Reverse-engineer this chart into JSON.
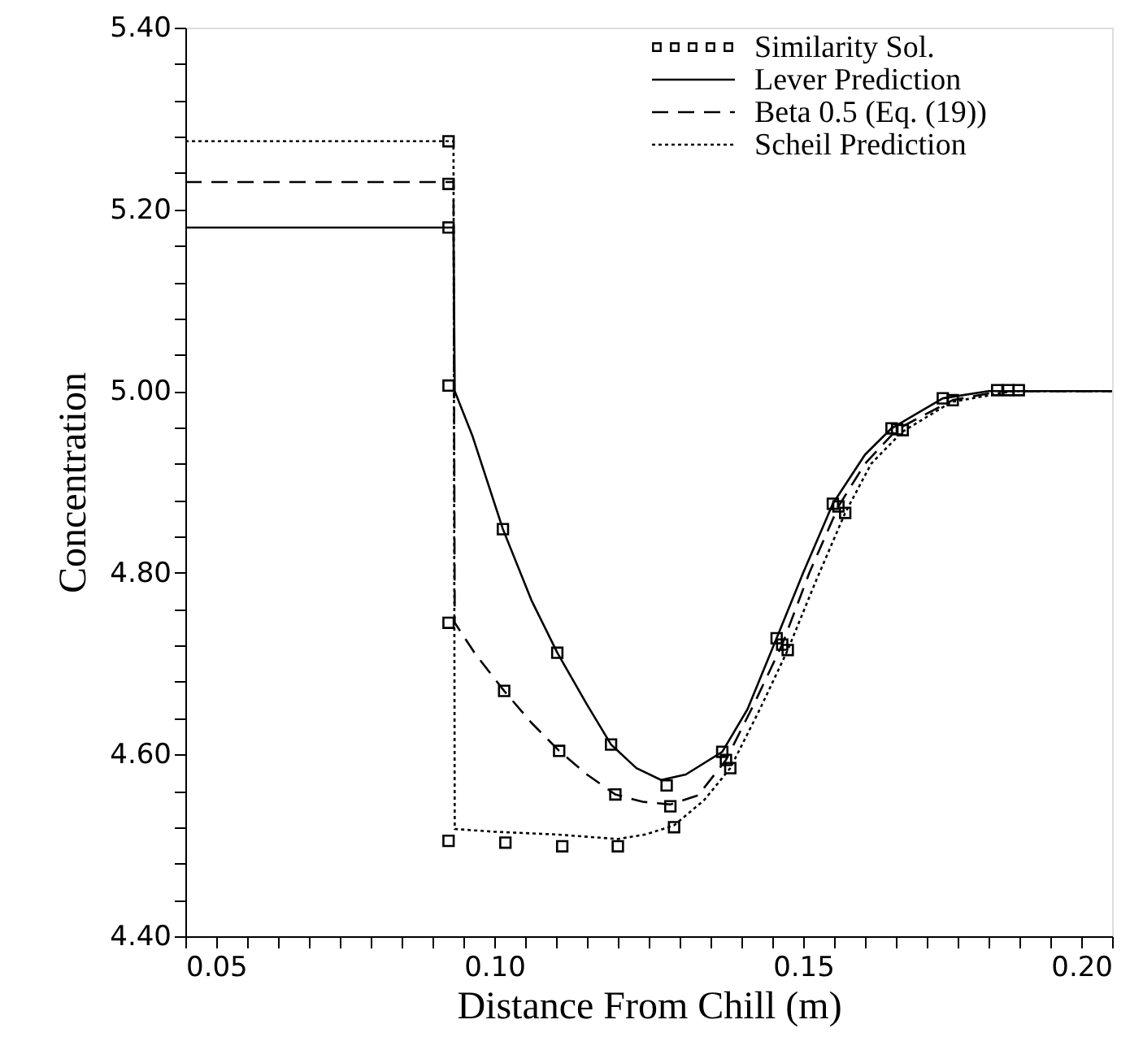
{
  "chart_data": {
    "type": "line",
    "xlabel": "Distance From Chill (m)",
    "ylabel": "Concentration",
    "xlim": [
      0.05,
      0.2
    ],
    "ylim": [
      4.4,
      5.4
    ],
    "xticks": [
      {
        "value": 0.05,
        "label": "0.05"
      },
      {
        "value": 0.055,
        "label": null
      },
      {
        "value": 0.06,
        "label": null
      },
      {
        "value": 0.065,
        "label": null
      },
      {
        "value": 0.07,
        "label": null
      },
      {
        "value": 0.075,
        "label": null
      },
      {
        "value": 0.08,
        "label": null
      },
      {
        "value": 0.085,
        "label": null
      },
      {
        "value": 0.09,
        "label": null
      },
      {
        "value": 0.095,
        "label": null
      },
      {
        "value": 0.1,
        "label": "0.10"
      },
      {
        "value": 0.105,
        "label": null
      },
      {
        "value": 0.11,
        "label": null
      },
      {
        "value": 0.115,
        "label": null
      },
      {
        "value": 0.12,
        "label": null
      },
      {
        "value": 0.125,
        "label": null
      },
      {
        "value": 0.13,
        "label": null
      },
      {
        "value": 0.135,
        "label": null
      },
      {
        "value": 0.14,
        "label": null
      },
      {
        "value": 0.145,
        "label": null
      },
      {
        "value": 0.15,
        "label": "0.15"
      },
      {
        "value": 0.155,
        "label": null
      },
      {
        "value": 0.16,
        "label": null
      },
      {
        "value": 0.165,
        "label": null
      },
      {
        "value": 0.17,
        "label": null
      },
      {
        "value": 0.175,
        "label": null
      },
      {
        "value": 0.18,
        "label": null
      },
      {
        "value": 0.185,
        "label": null
      },
      {
        "value": 0.19,
        "label": null
      },
      {
        "value": 0.195,
        "label": null
      },
      {
        "value": 0.2,
        "label": "0.20"
      }
    ],
    "yticks": [
      {
        "value": 4.4,
        "label": "4.40"
      },
      {
        "value": 4.44,
        "label": null
      },
      {
        "value": 4.48,
        "label": null
      },
      {
        "value": 4.52,
        "label": null
      },
      {
        "value": 4.56,
        "label": null
      },
      {
        "value": 4.6,
        "label": "4.60"
      },
      {
        "value": 4.64,
        "label": null
      },
      {
        "value": 4.68,
        "label": null
      },
      {
        "value": 4.72,
        "label": null
      },
      {
        "value": 4.76,
        "label": null
      },
      {
        "value": 4.8,
        "label": "4.80"
      },
      {
        "value": 4.84,
        "label": null
      },
      {
        "value": 4.88,
        "label": null
      },
      {
        "value": 4.92,
        "label": null
      },
      {
        "value": 4.96,
        "label": null
      },
      {
        "value": 5.0,
        "label": "5.00"
      },
      {
        "value": 5.04,
        "label": null
      },
      {
        "value": 5.08,
        "label": null
      },
      {
        "value": 5.12,
        "label": null
      },
      {
        "value": 5.16,
        "label": null
      },
      {
        "value": 5.2,
        "label": "5.20"
      },
      {
        "value": 5.24,
        "label": null
      },
      {
        "value": 5.28,
        "label": null
      },
      {
        "value": 5.32,
        "label": null
      },
      {
        "value": 5.36,
        "label": null
      },
      {
        "value": 5.4,
        "label": "5.40"
      }
    ],
    "grid": false,
    "legend": "top right",
    "series": [
      {
        "name": "Similarity Sol.",
        "type": "scatter",
        "marker": "square",
        "color": "#000000",
        "x": [
          0.0926,
          0.0926,
          0.0926,
          0.0926,
          0.0926,
          0.0926,
          0.1014,
          0.1016,
          0.1018,
          0.1102,
          0.1105,
          0.111,
          0.1189,
          0.1196,
          0.12,
          0.1279,
          0.1285,
          0.1291,
          0.1369,
          0.1375,
          0.1382,
          0.1457,
          0.1466,
          0.1475,
          0.1548,
          0.1557,
          0.1568,
          0.1643,
          0.1652,
          0.1661,
          0.1726,
          0.1742,
          0.1814,
          0.1832,
          0.1849
        ],
        "values": [
          5.275,
          5.228,
          5.18,
          5.006,
          4.745,
          4.505,
          4.848,
          4.67,
          4.503,
          4.712,
          4.604,
          4.499,
          4.611,
          4.556,
          4.499,
          4.566,
          4.543,
          4.52,
          4.603,
          4.594,
          4.585,
          4.728,
          4.721,
          4.715,
          4.876,
          4.873,
          4.866,
          4.959,
          4.958,
          4.957,
          4.992,
          4.99,
          5.001,
          5.001,
          5.001
        ]
      },
      {
        "name": "Lever Prediction",
        "line_style": "solid",
        "color": "#000000",
        "x": [
          0.05,
          0.0934,
          0.0936,
          0.0965,
          0.1014,
          0.106,
          0.1102,
          0.115,
          0.1189,
          0.123,
          0.127,
          0.131,
          0.1369,
          0.141,
          0.1457,
          0.15,
          0.1548,
          0.16,
          0.1643,
          0.1726,
          0.18,
          0.2
        ],
        "values": [
          5.18,
          5.18,
          5.0,
          4.95,
          4.848,
          4.77,
          4.712,
          4.655,
          4.611,
          4.585,
          4.572,
          4.578,
          4.603,
          4.65,
          4.728,
          4.8,
          4.876,
          4.93,
          4.959,
          4.992,
          5.0,
          5.0
        ]
      },
      {
        "name": "Beta 0.5 (Eq. (19))",
        "line_style": "dashed",
        "color": "#000000",
        "x": [
          0.05,
          0.0934,
          0.0936,
          0.097,
          0.1016,
          0.106,
          0.1105,
          0.115,
          0.1196,
          0.124,
          0.1285,
          0.133,
          0.1375,
          0.142,
          0.1466,
          0.151,
          0.1557,
          0.16,
          0.1652,
          0.1742,
          0.182,
          0.2
        ],
        "values": [
          5.23,
          5.23,
          4.745,
          4.71,
          4.67,
          4.635,
          4.604,
          4.578,
          4.556,
          4.548,
          4.545,
          4.555,
          4.594,
          4.655,
          4.721,
          4.8,
          4.873,
          4.92,
          4.958,
          4.99,
          5.0,
          5.0
        ]
      },
      {
        "name": "Scheil Prediction",
        "line_style": "dotted",
        "color": "#000000",
        "x": [
          0.05,
          0.0934,
          0.0936,
          0.1,
          0.11,
          0.12,
          0.1245,
          0.1291,
          0.134,
          0.1382,
          0.143,
          0.1475,
          0.152,
          0.1568,
          0.161,
          0.166,
          0.174,
          0.184,
          0.2
        ],
        "values": [
          5.275,
          5.275,
          4.518,
          4.515,
          4.512,
          4.507,
          4.512,
          4.522,
          4.55,
          4.585,
          4.65,
          4.715,
          4.79,
          4.866,
          4.92,
          4.955,
          4.988,
          5.0,
          5.0
        ]
      }
    ]
  }
}
